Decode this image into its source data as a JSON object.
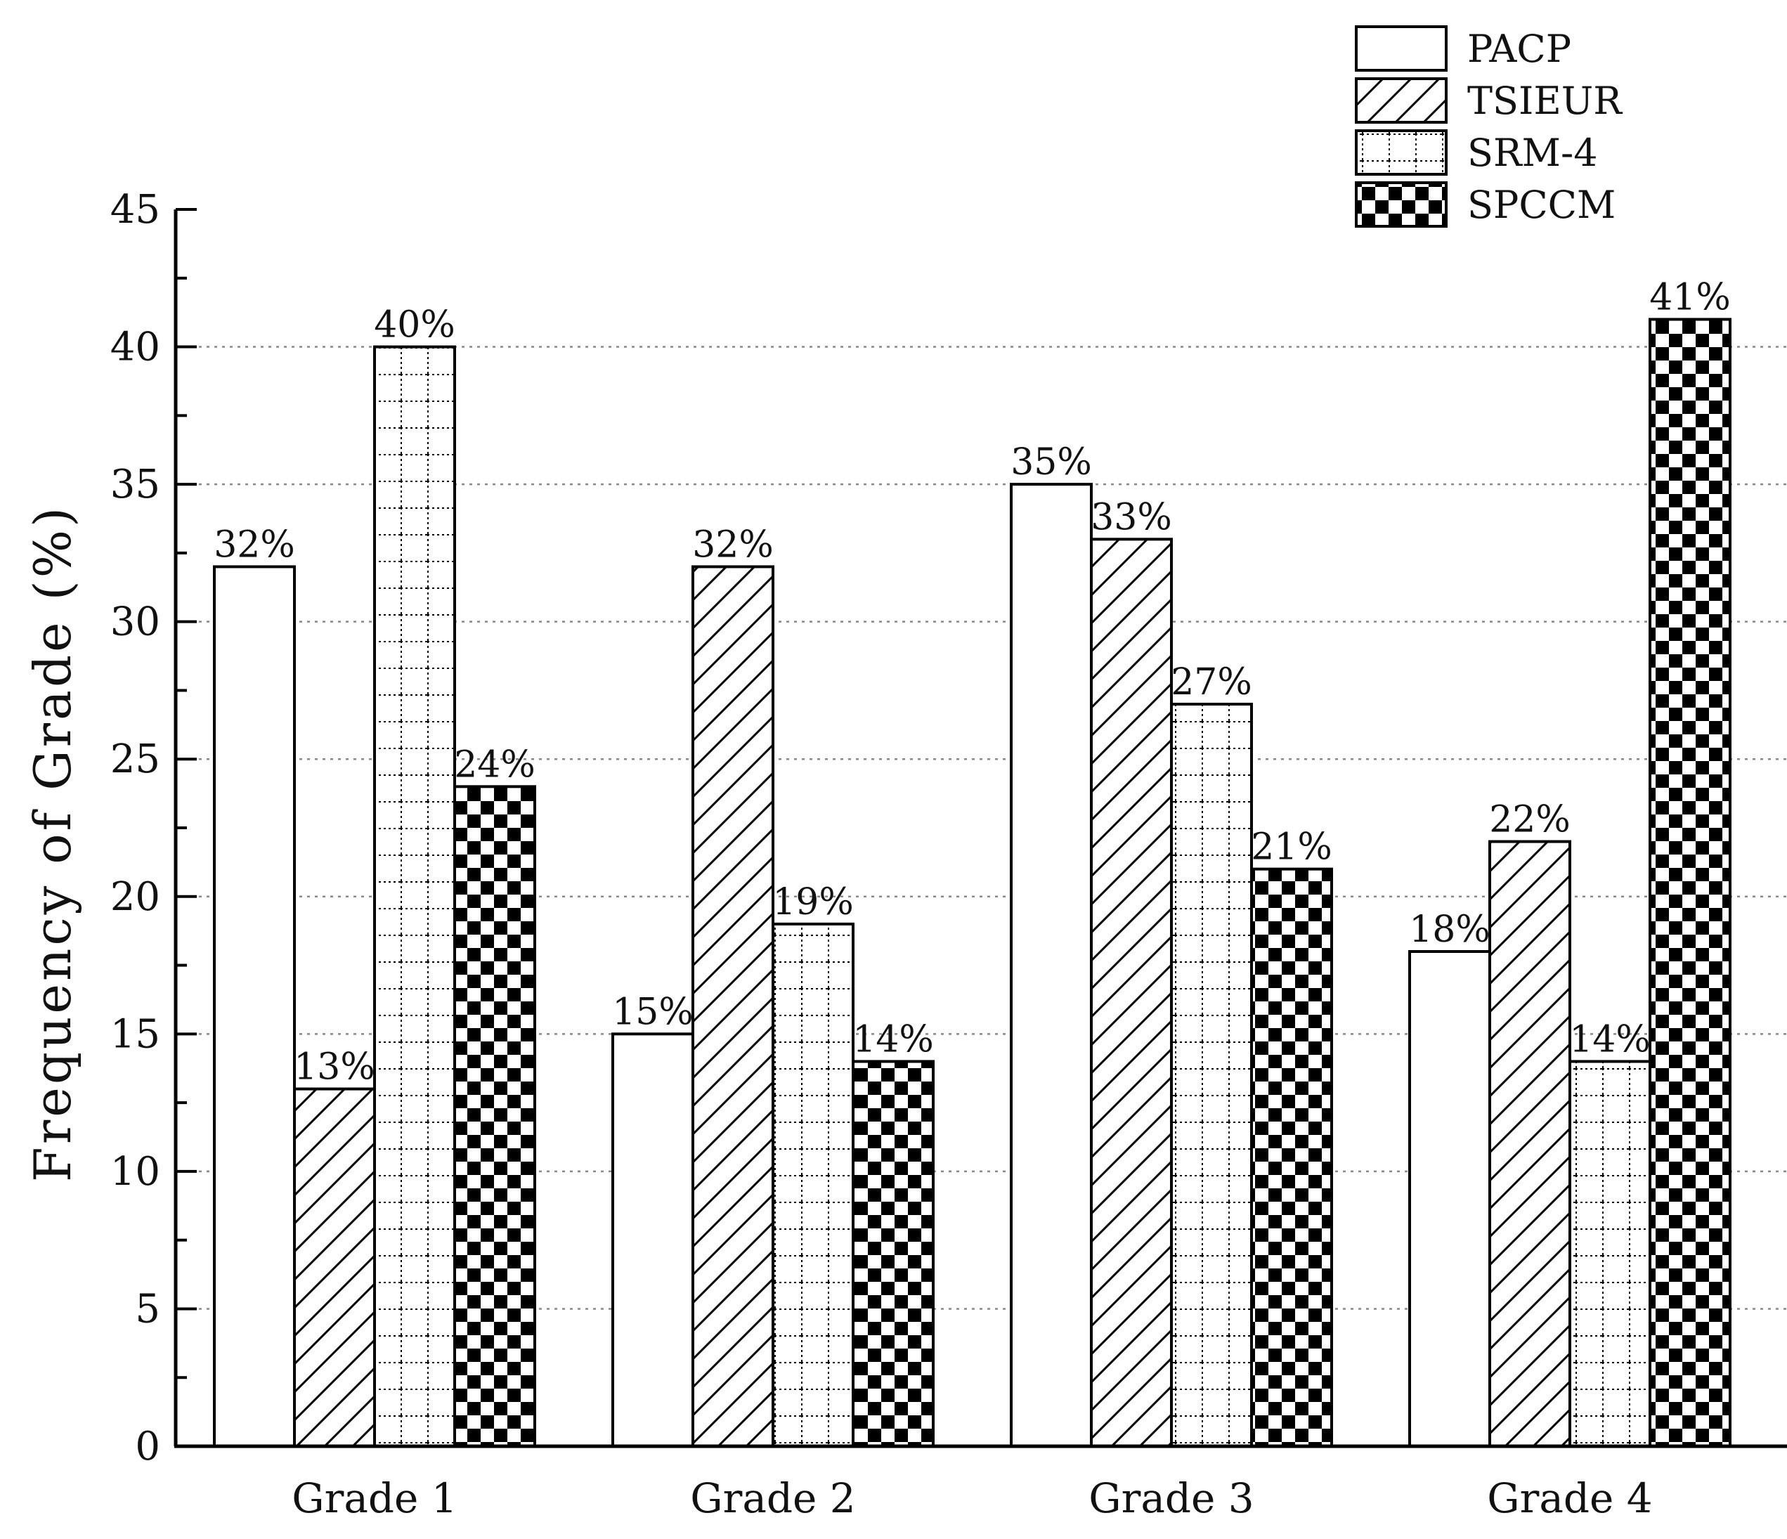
{
  "chart_data": {
    "type": "bar",
    "title": "",
    "xlabel": "",
    "ylabel": "Frequency of Grade (%)",
    "ylim": [
      0,
      45
    ],
    "yticks": [
      0,
      5,
      10,
      15,
      20,
      25,
      30,
      35,
      40,
      45
    ],
    "grid": true,
    "legend_position": "top-right",
    "categories": [
      "Grade 1",
      "Grade 2",
      "Grade 3",
      "Grade 4"
    ],
    "series": [
      {
        "name": "PACP",
        "pattern": "none",
        "values": [
          32,
          15,
          35,
          18
        ],
        "labels": [
          "32%",
          "15%",
          "35%",
          "18%"
        ]
      },
      {
        "name": "TSIEUR",
        "pattern": "hatch",
        "values": [
          13,
          32,
          33,
          22
        ],
        "labels": [
          "13%",
          "32%",
          "33%",
          "22%"
        ]
      },
      {
        "name": "SRM-4",
        "pattern": "dotgrid",
        "values": [
          40,
          19,
          27,
          14
        ],
        "labels": [
          "40%",
          "19%",
          "27%",
          "14%"
        ]
      },
      {
        "name": "SPCCM",
        "pattern": "checker",
        "values": [
          24,
          14,
          21,
          41
        ],
        "labels": [
          "24%",
          "14%",
          "21%",
          "41%"
        ]
      }
    ],
    "colors": {
      "edge": "#000000",
      "fill": "#ffffff",
      "grid": "#888888"
    }
  }
}
